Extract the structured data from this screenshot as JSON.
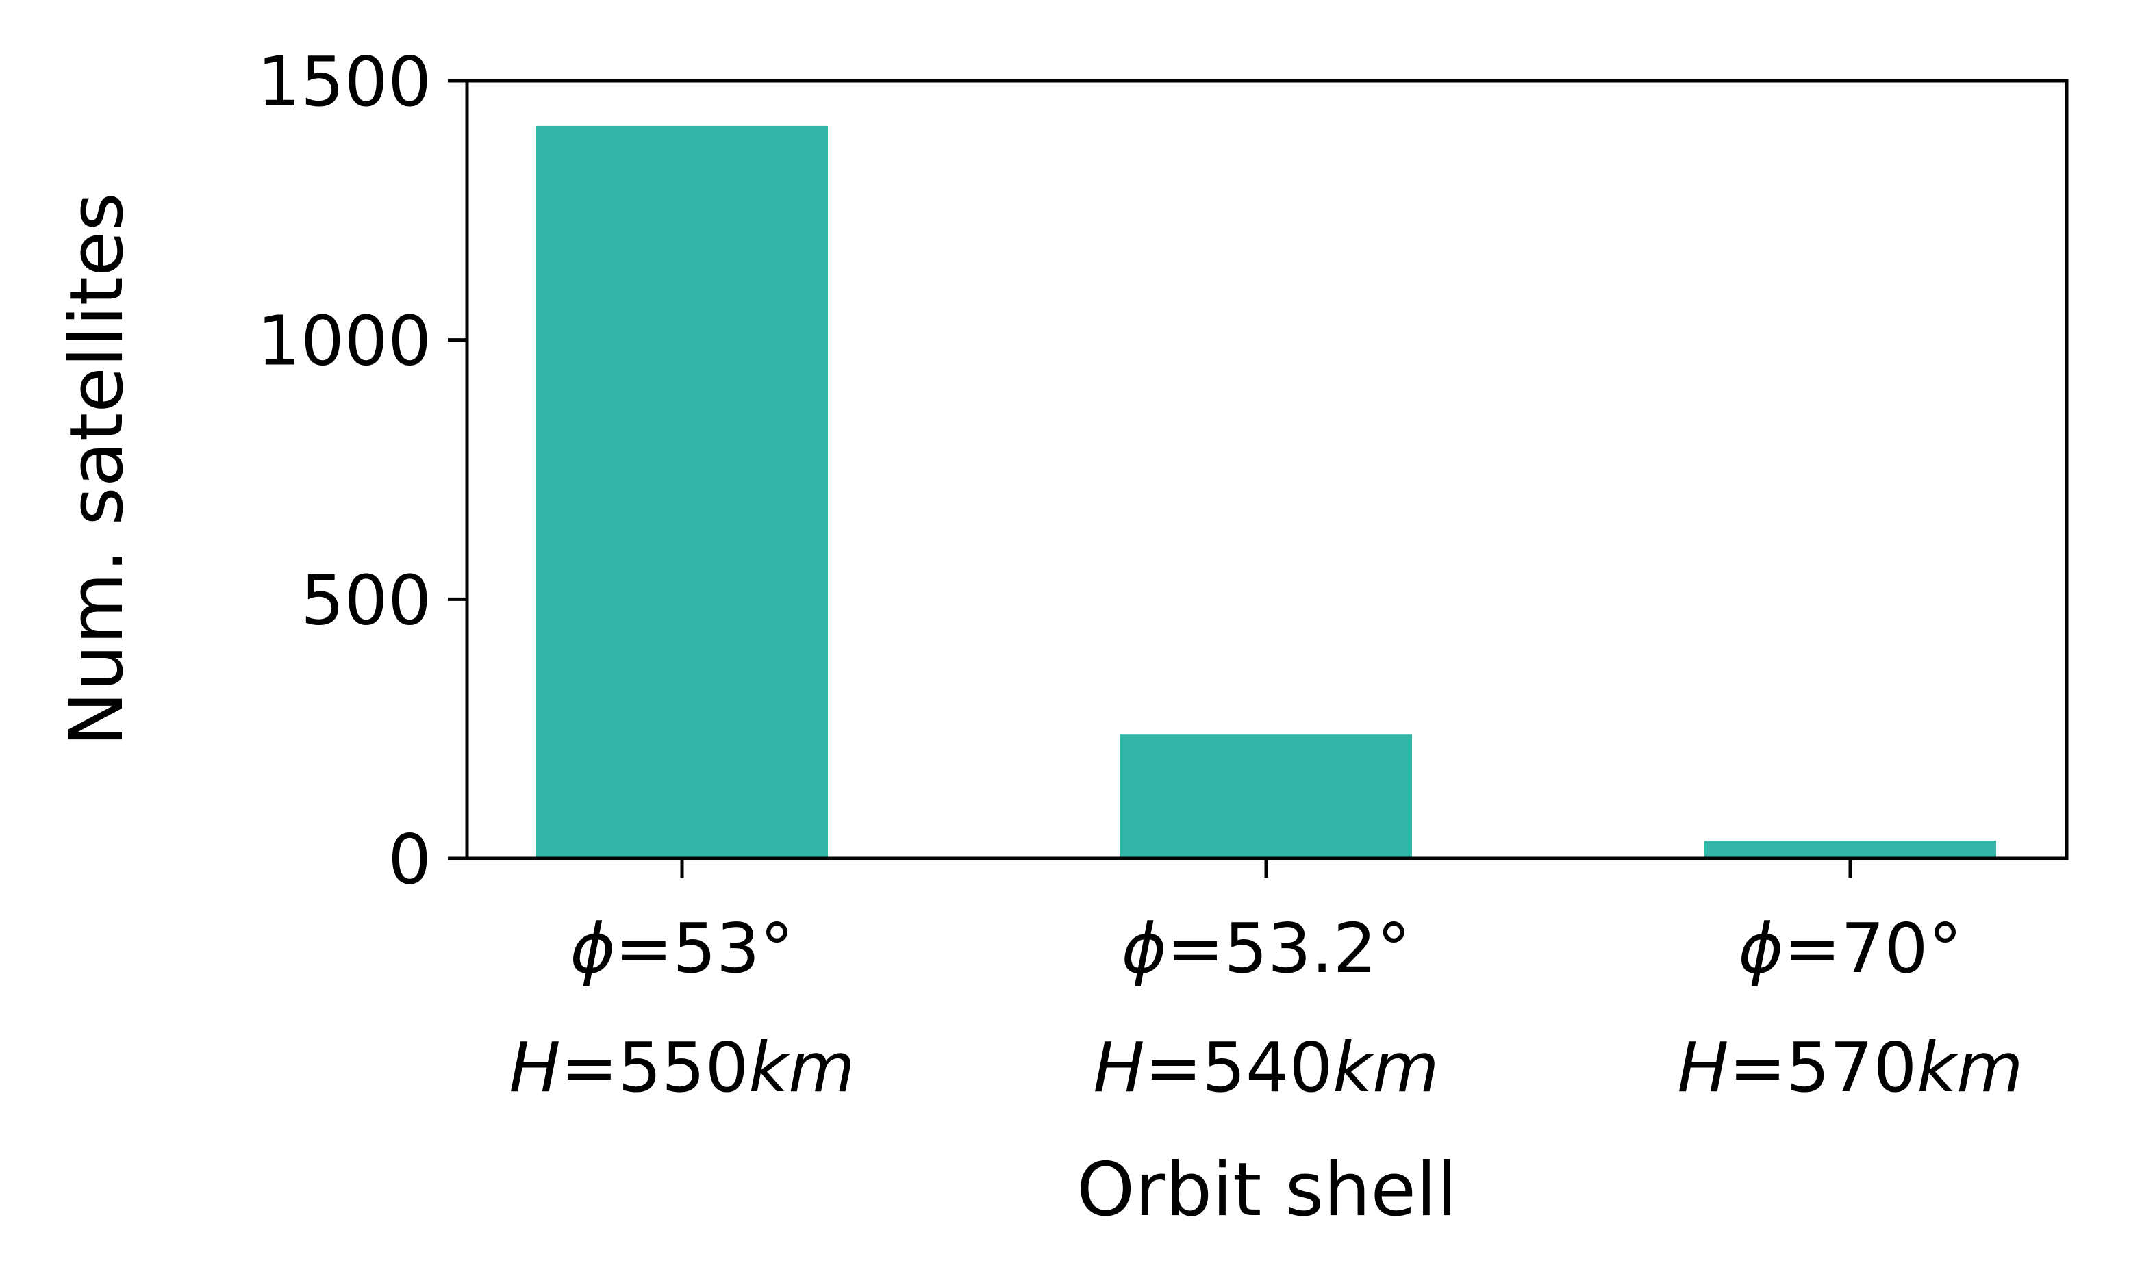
{
  "chart_data": {
    "type": "bar",
    "categories": [
      {
        "line1_sym": "ϕ",
        "line1_rest": "=53°",
        "line2_sym": "H",
        "line2_num": "=550",
        "line2_unit": "km"
      },
      {
        "line1_sym": "ϕ",
        "line1_rest": "=53.2°",
        "line2_sym": "H",
        "line2_num": "=540",
        "line2_unit": "km"
      },
      {
        "line1_sym": "ϕ",
        "line1_rest": "=70°",
        "line2_sym": "H",
        "line2_num": "=570",
        "line2_unit": "km"
      }
    ],
    "values": [
      1413,
      240,
      34
    ],
    "title": "",
    "xlabel": "Orbit shell",
    "ylabel": "Num. satellites",
    "ylim": [
      0,
      1500
    ],
    "yticks": [
      0,
      500,
      1000,
      1500
    ],
    "ytick_labels": [
      "0",
      "500",
      "1000",
      "1500"
    ],
    "bar_color": "#35b5a7",
    "grid": false,
    "legend": "none"
  }
}
